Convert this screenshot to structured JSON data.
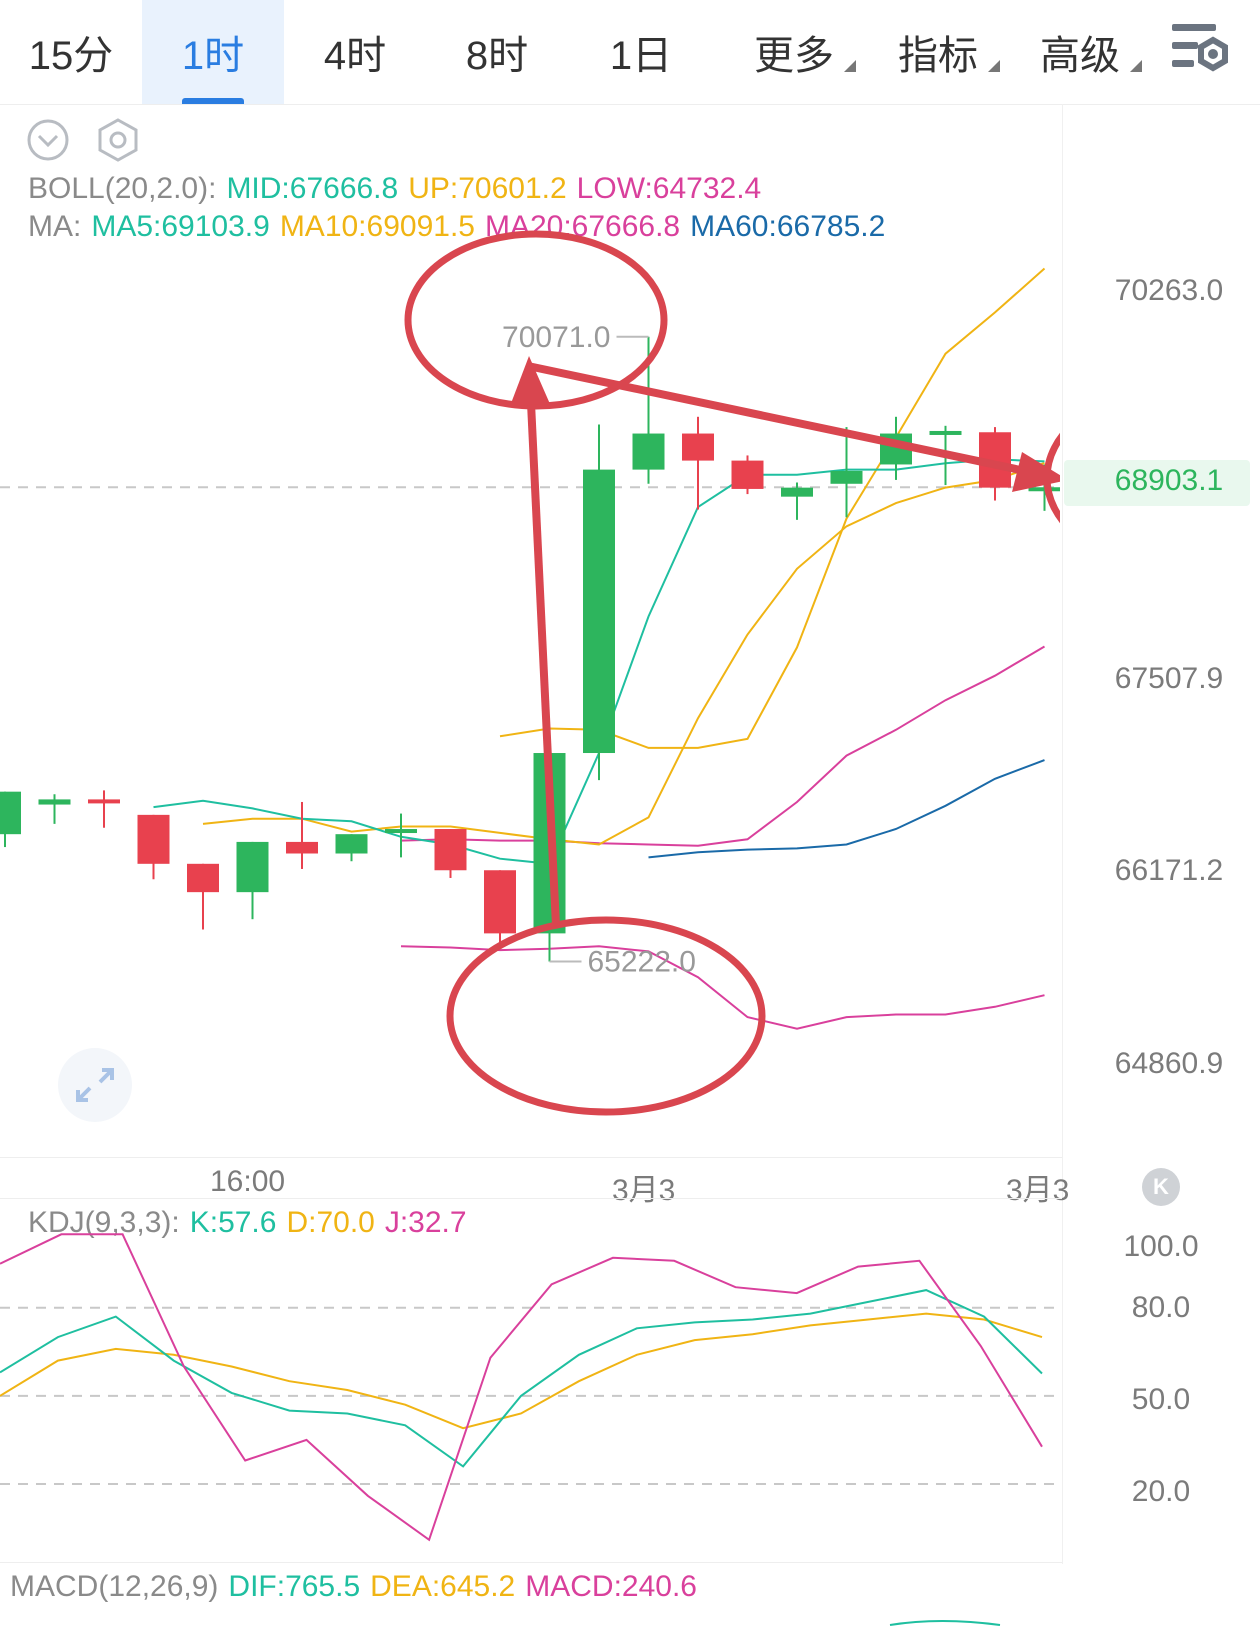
{
  "tabs": [
    {
      "label": "15分",
      "active": false,
      "dropdown": false
    },
    {
      "label": "1时",
      "active": true,
      "dropdown": false
    },
    {
      "label": "4时",
      "active": false,
      "dropdown": false
    },
    {
      "label": "8时",
      "active": false,
      "dropdown": false
    },
    {
      "label": "1日",
      "active": false,
      "dropdown": false
    },
    {
      "label": "更多",
      "active": false,
      "dropdown": true
    },
    {
      "label": "指标",
      "active": false,
      "dropdown": true
    },
    {
      "label": "高级",
      "active": false,
      "dropdown": true
    }
  ],
  "boll": {
    "name": "BOLL(20,2.0):",
    "mid": "MID:67666.8",
    "up": "UP:70601.2",
    "low": "LOW:64732.4"
  },
  "ma": {
    "name": "MA:",
    "ma5": "MA5:69103.9",
    "ma10": "MA10:69091.5",
    "ma20": "MA20:67666.8",
    "ma60": "MA60:66785.2"
  },
  "price_axis": [
    "70263.0",
    "67507.9",
    "66171.2",
    "64860.9"
  ],
  "last_price": "68903.1",
  "high_marker": "70071.0",
  "low_marker": "65222.0",
  "time_axis": [
    "16:00",
    "3月3",
    "3月3"
  ],
  "kdj": {
    "name": "KDJ(9,3,3):",
    "k": "K:57.6",
    "d": "D:70.0",
    "j": "J:32.7",
    "axis": [
      "100.0",
      "80.0",
      "50.0",
      "20.0"
    ]
  },
  "macd": {
    "name": "MACD(12,26,9)",
    "dif": "DIF:765.5",
    "dea": "DEA:645.2",
    "macd": "MACD:240.6"
  },
  "badge": "K",
  "colors": {
    "up": "#2db55d",
    "down": "#e8414e",
    "accent": "#2a7de1",
    "ma5": "#1fbfa0",
    "ma10": "#f0b414",
    "ma20": "#d9409c",
    "ma60": "#1a6aa8",
    "annotation": "#d9464f"
  },
  "chart_data": {
    "type": "candlestick",
    "interval": "1时",
    "candles": [
      {
        "open": 66210,
        "high": 66540,
        "low": 66110,
        "close": 66540,
        "color": "up"
      },
      {
        "open": 66440,
        "high": 66520,
        "low": 66290,
        "close": 66480,
        "color": "up"
      },
      {
        "open": 66480,
        "high": 66550,
        "low": 66260,
        "close": 66480,
        "color": "down"
      },
      {
        "open": 66360,
        "high": 66360,
        "low": 65860,
        "close": 65980,
        "color": "down"
      },
      {
        "open": 65980,
        "high": 65980,
        "low": 65470,
        "close": 65760,
        "color": "down"
      },
      {
        "open": 65760,
        "high": 66150,
        "low": 65550,
        "close": 66150,
        "color": "up"
      },
      {
        "open": 66150,
        "high": 66460,
        "low": 65940,
        "close": 66060,
        "color": "down"
      },
      {
        "open": 66060,
        "high": 66210,
        "low": 66000,
        "close": 66210,
        "color": "up"
      },
      {
        "open": 66230,
        "high": 66370,
        "low": 66030,
        "close": 66250,
        "color": "up"
      },
      {
        "open": 66250,
        "high": 66250,
        "low": 65870,
        "close": 65930,
        "color": "down"
      },
      {
        "open": 65930,
        "high": 65930,
        "low": 65330,
        "close": 65440,
        "color": "down"
      },
      {
        "open": 65440,
        "high": 66840,
        "low": 65222,
        "close": 66840,
        "color": "up"
      },
      {
        "open": 66840,
        "high": 69390,
        "low": 66630,
        "close": 69040,
        "color": "up"
      },
      {
        "open": 69040,
        "high": 70071,
        "low": 68930,
        "close": 69320,
        "color": "up"
      },
      {
        "open": 69320,
        "high": 69450,
        "low": 68730,
        "close": 69110,
        "color": "down"
      },
      {
        "open": 69110,
        "high": 69150,
        "low": 68850,
        "close": 68890,
        "color": "down"
      },
      {
        "open": 68830,
        "high": 68940,
        "low": 68650,
        "close": 68900,
        "color": "up"
      },
      {
        "open": 68930,
        "high": 69370,
        "low": 68670,
        "close": 69030,
        "color": "up"
      },
      {
        "open": 69080,
        "high": 69450,
        "low": 68960,
        "close": 69320,
        "color": "up"
      },
      {
        "open": 69320,
        "high": 69380,
        "low": 68920,
        "close": 69340,
        "color": "up"
      },
      {
        "open": 69330,
        "high": 69370,
        "low": 68800,
        "close": 68900,
        "color": "down"
      },
      {
        "open": 68900,
        "high": 69080,
        "low": 68720,
        "close": 68903.1,
        "color": "up"
      }
    ],
    "ma5_line": [
      66420,
      66470,
      66410,
      66330,
      66310,
      66190,
      66130,
      66020,
      65980,
      66840,
      67900,
      68750,
      69000,
      69000,
      69040,
      69040,
      69090,
      69120,
      69103.9
    ],
    "ma10_line": [
      66290,
      66330,
      66330,
      66230,
      66270,
      66270,
      66220,
      66170,
      66130,
      66340,
      67110,
      67760,
      68270,
      68600,
      68780,
      68900,
      68960,
      69091.5
    ],
    "boll_mid_line": [
      66160,
      66170,
      66160,
      66160,
      66140,
      66130,
      66120,
      66170,
      66460,
      66820,
      67020,
      67250,
      67440,
      67666.8
    ],
    "boll_up_line": [
      66970,
      67030,
      67020,
      66880,
      66880,
      66950,
      67660,
      68660,
      69290,
      69940,
      70260,
      70601.2
    ],
    "boll_low_line": [
      65340,
      65330,
      65310,
      65320,
      65340,
      65300,
      65100,
      64790,
      64700,
      64790,
      64810,
      64810,
      64870,
      64960
    ],
    "ma60_line": [
      66030,
      66070,
      66090,
      66100,
      66130,
      66250,
      66430,
      66640,
      66785.2
    ],
    "kdj_k_line": [
      58,
      70,
      77,
      62,
      51,
      45,
      44,
      40,
      26,
      50,
      64,
      73,
      75,
      76,
      78,
      82,
      86,
      77,
      57.6
    ],
    "kdj_d_line": [
      50,
      62,
      66,
      64,
      60,
      55,
      52,
      47,
      39,
      44,
      55,
      64,
      69,
      71,
      74,
      76,
      78,
      76,
      70.0
    ],
    "kdj_j_line": [
      95,
      105,
      105,
      60,
      28,
      35,
      16,
      1,
      63,
      88,
      97,
      96,
      87,
      85,
      94,
      96,
      67,
      32.7
    ],
    "price_range": [
      64100,
      70900
    ]
  }
}
